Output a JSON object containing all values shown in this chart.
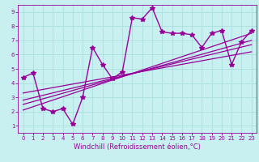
{
  "title": "",
  "xlabel": "Windchill (Refroidissement éolien,°C)",
  "ylabel": "",
  "bg_color": "#c8f0f0",
  "line_color": "#990099",
  "grid_color": "#aadddd",
  "xlim": [
    -0.5,
    23.5
  ],
  "ylim": [
    0.5,
    9.5
  ],
  "xticks": [
    0,
    1,
    2,
    3,
    4,
    5,
    6,
    7,
    8,
    9,
    10,
    11,
    12,
    13,
    14,
    15,
    16,
    17,
    18,
    19,
    20,
    21,
    22,
    23
  ],
  "yticks": [
    1,
    2,
    3,
    4,
    5,
    6,
    7,
    8,
    9
  ],
  "scatter_x": [
    0,
    1,
    2,
    3,
    4,
    5,
    6,
    7,
    8,
    9,
    10,
    11,
    12,
    13,
    14,
    15,
    16,
    17,
    18,
    19,
    20,
    21,
    22,
    23
  ],
  "scatter_y": [
    4.4,
    4.7,
    2.2,
    2.0,
    2.2,
    1.1,
    3.0,
    6.5,
    5.3,
    4.3,
    4.8,
    8.6,
    8.5,
    9.3,
    7.6,
    7.5,
    7.5,
    7.4,
    6.5,
    7.5,
    7.7,
    5.3,
    6.9,
    7.7
  ],
  "trend_lines": [
    {
      "x": [
        0,
        23
      ],
      "y": [
        2.1,
        7.5
      ]
    },
    {
      "x": [
        0,
        23
      ],
      "y": [
        2.5,
        7.0
      ]
    },
    {
      "x": [
        0,
        23
      ],
      "y": [
        2.8,
        6.7
      ]
    },
    {
      "x": [
        0,
        23
      ],
      "y": [
        3.3,
        6.2
      ]
    }
  ],
  "marker": "*",
  "markersize": 4,
  "linewidth": 1.0,
  "tick_fontsize": 5,
  "label_fontsize": 6
}
